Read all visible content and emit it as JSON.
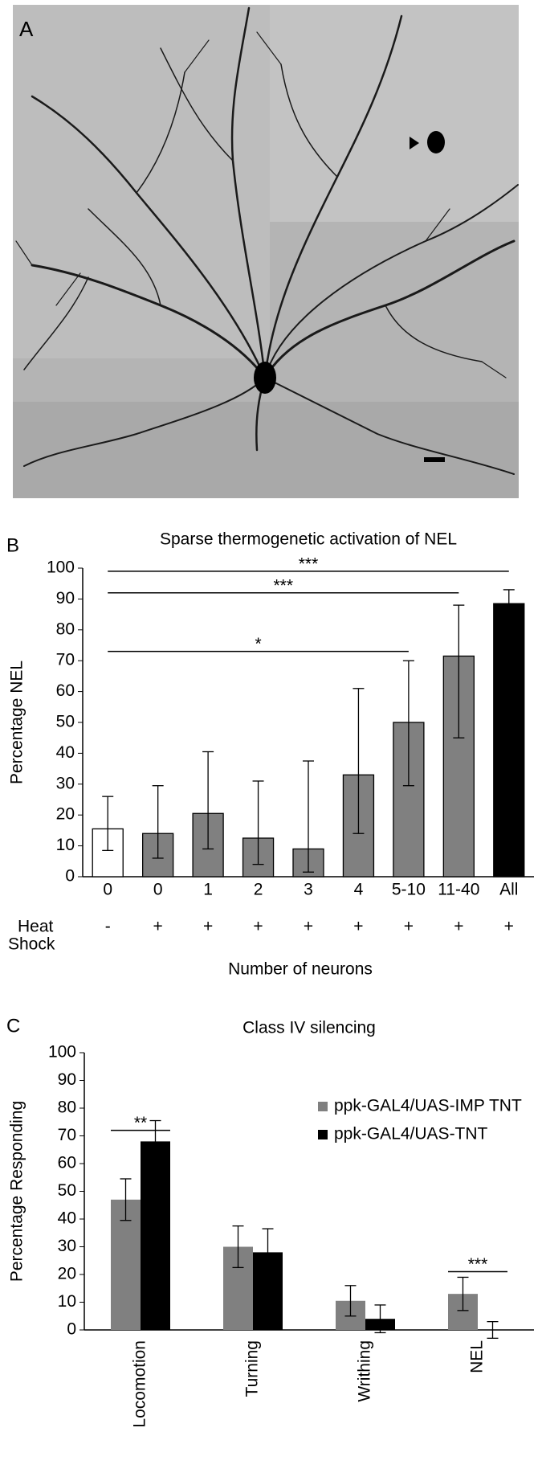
{
  "image_panel": {
    "label": "A"
  },
  "chart_data": [
    {
      "type": "bar",
      "panel_label": "B",
      "title": "Sparse thermogenetic activation of NEL",
      "y_label": "Percentage NEL",
      "x_label": "Number of neurons",
      "categories": [
        "0",
        "0",
        "1",
        "2",
        "3",
        "4",
        "5-10",
        "11-40",
        "All"
      ],
      "values": [
        15.5,
        14,
        20.5,
        12.5,
        9,
        33,
        50,
        71.5,
        88.5
      ],
      "error_minus": [
        7,
        8,
        11.5,
        8.5,
        7.5,
        19,
        20.5,
        26.5,
        5.5
      ],
      "error_plus": [
        10.5,
        15.5,
        20,
        18.5,
        28.5,
        28,
        20,
        16.5,
        4.5
      ],
      "colors": [
        "#ffffff",
        "#808080",
        "#808080",
        "#808080",
        "#808080",
        "#808080",
        "#808080",
        "#808080",
        "#000000"
      ],
      "row_label": [
        "Heat",
        "Shock"
      ],
      "row_values": [
        "-",
        "+",
        "+",
        "+",
        "+",
        "+",
        "+",
        "+",
        "+"
      ],
      "annotations": [
        {
          "from": 0,
          "to": 8,
          "y": 99,
          "text": "***"
        },
        {
          "from": 0,
          "to": 7,
          "y": 92,
          "text": "***"
        },
        {
          "from": 0,
          "to": 6,
          "y": 73,
          "text": "*"
        }
      ],
      "ylim": [
        0,
        100
      ],
      "yticks": [
        0,
        10,
        20,
        30,
        40,
        50,
        60,
        70,
        80,
        90,
        100
      ],
      "grid": false
    },
    {
      "type": "bar",
      "panel_label": "C",
      "title": "Class IV silencing",
      "y_label": "Percentage Responding",
      "categories": [
        "Locomotion",
        "Turning",
        "Writhing",
        "NEL"
      ],
      "series": [
        {
          "name": "ppk-GAL4/UAS-IMP TNT",
          "color": "#808080",
          "values": [
            47,
            30,
            10.5,
            13
          ],
          "errors": [
            7.5,
            7.5,
            5.5,
            6
          ]
        },
        {
          "name": "ppk-GAL4/UAS-TNT",
          "color": "#000000",
          "values": [
            68,
            28,
            4,
            0
          ],
          "errors": [
            7.5,
            8.5,
            5,
            3
          ]
        }
      ],
      "annotations": [
        {
          "from": 0,
          "to": 0,
          "y": 72,
          "text": "**"
        },
        {
          "from": 3,
          "to": 3,
          "y": 21,
          "text": "***"
        }
      ],
      "ylim": [
        0,
        100
      ],
      "yticks": [
        0,
        10,
        20,
        30,
        40,
        50,
        60,
        70,
        80,
        90,
        100
      ],
      "grid": false
    }
  ]
}
